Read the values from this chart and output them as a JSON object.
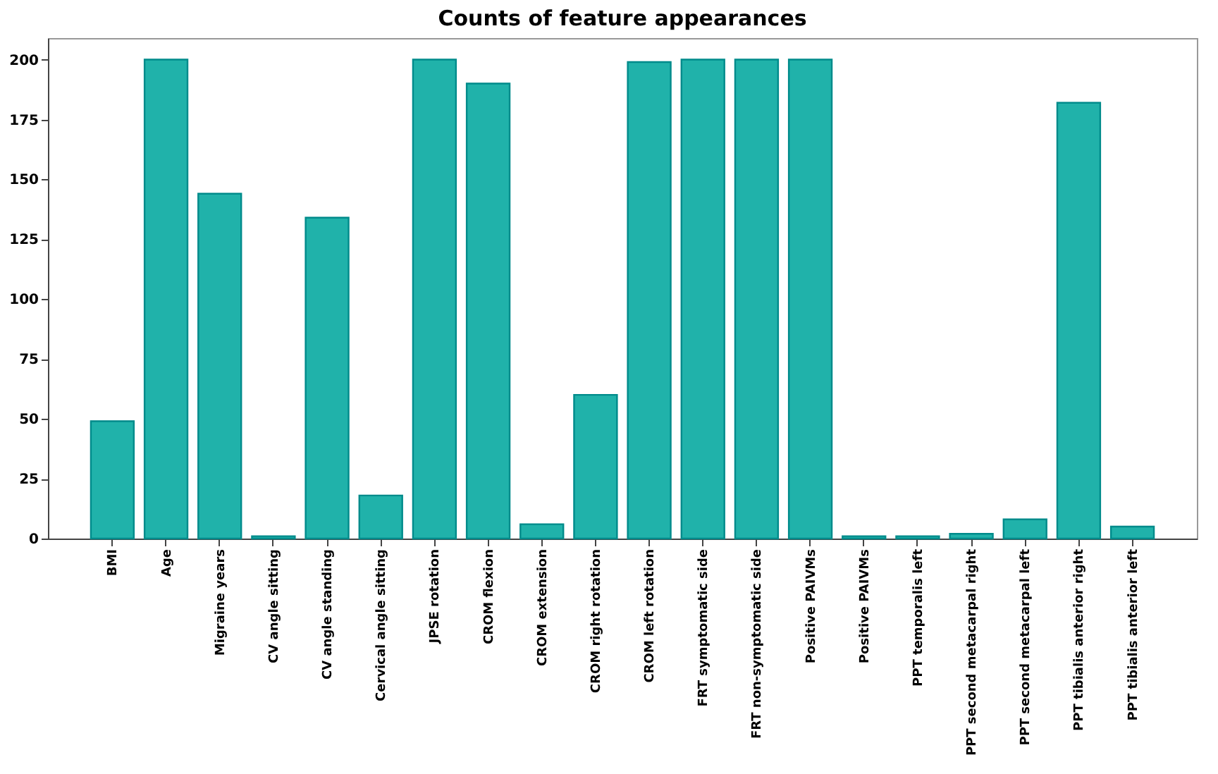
{
  "chart_data": {
    "type": "bar",
    "title": "Counts of feature appearances",
    "categories": [
      "BMI",
      "Age",
      "Migraine years",
      "CV angle sitting",
      "CV angle standing",
      "Cervical angle sitting",
      "JPSE rotation",
      "CROM flexion",
      "CROM extension",
      "CROM right rotation",
      "CROM left rotation",
      "FRT symptomatic side",
      "FRT non-symptomatic side",
      "Positive PAIVMs",
      "Positive PAIVMs",
      "PPT temporalis left",
      "PPT second metacarpal right",
      "PPT second metacarpal left",
      "PPT tibialis anterior right",
      "PPT tibialis anterior left"
    ],
    "values": [
      49,
      200,
      144,
      1,
      134,
      18,
      200,
      190,
      6,
      60,
      199,
      200,
      200,
      200,
      1,
      1,
      2,
      8,
      182,
      5
    ],
    "color": "#20b2aa",
    "ylim": [
      0,
      209
    ],
    "yticks": [
      0,
      25,
      50,
      75,
      100,
      125,
      150,
      175,
      200
    ],
    "grid": false
  }
}
